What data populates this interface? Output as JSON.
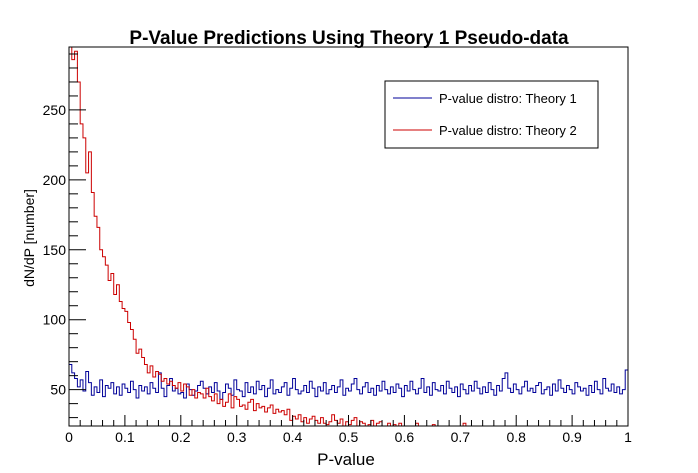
{
  "chart_data": {
    "type": "line",
    "title": "P-Value Predictions Using Theory 1 Pseudo-data",
    "xlabel": "P-value",
    "ylabel": "dN/dP [number]",
    "xlim": [
      0,
      1
    ],
    "ylim": [
      24,
      295
    ],
    "grid": false,
    "legend_position": "top-right",
    "x_ticks": [
      "0",
      "0.1",
      "0.2",
      "0.3",
      "0.4",
      "0.5",
      "0.6",
      "0.7",
      "0.8",
      "0.9",
      "1"
    ],
    "y_ticks": [
      "50",
      "100",
      "150",
      "200",
      "250"
    ],
    "y_tick_values": [
      50,
      100,
      150,
      200,
      250
    ],
    "bin_width": 0.005,
    "series": [
      {
        "name": "P-value distro: Theory 1",
        "color": "#000099",
        "values": [
          68,
          62,
          58,
          52,
          57,
          49,
          63,
          55,
          46,
          52,
          48,
          57,
          45,
          53,
          51,
          55,
          47,
          52,
          46,
          54,
          51,
          48,
          56,
          50,
          44,
          53,
          49,
          52,
          47,
          55,
          51,
          48,
          62,
          51,
          45,
          53,
          58,
          49,
          51,
          47,
          48,
          44,
          54,
          50,
          46,
          49,
          53,
          56,
          51,
          47,
          52,
          48,
          55,
          49,
          43,
          48,
          54,
          51,
          46,
          57,
          50,
          49,
          45,
          55,
          48,
          52,
          47,
          56,
          50,
          53,
          45,
          51,
          57,
          47,
          50,
          48,
          52,
          55,
          46,
          51,
          58,
          50,
          47,
          49,
          53,
          48,
          56,
          51,
          45,
          52,
          49,
          55,
          47,
          50,
          53,
          48,
          52,
          57,
          46,
          51,
          49,
          54,
          58,
          50,
          47,
          52,
          55,
          48,
          51,
          46,
          53,
          49,
          56,
          50,
          47,
          52,
          48,
          54,
          51,
          45,
          53,
          49,
          56,
          50,
          47,
          51,
          58,
          48,
          52,
          46,
          55,
          50,
          49,
          53,
          47,
          56,
          51,
          48,
          52,
          45,
          54,
          50,
          47,
          53,
          49,
          56,
          51,
          47,
          52,
          48,
          55,
          50,
          46,
          53,
          49,
          58,
          62,
          51,
          48,
          54,
          50,
          47,
          52,
          56,
          49,
          51,
          48,
          53,
          55,
          47,
          50,
          52,
          46,
          54,
          49,
          57,
          51,
          48,
          53,
          50,
          47,
          55,
          52,
          49,
          51,
          46,
          53,
          48,
          56,
          50,
          47,
          58,
          51,
          49,
          54,
          48,
          52,
          47,
          50,
          64
        ]
      },
      {
        "name": "P-value distro: Theory 2",
        "color": "#cc0000",
        "values": [
          298,
          286,
          292,
          270,
          240,
          230,
          205,
          220,
          191,
          174,
          166,
          150,
          145,
          139,
          128,
          133,
          118,
          125,
          113,
          108,
          106,
          98,
          93,
          86,
          76,
          79,
          73,
          68,
          62,
          67,
          59,
          63,
          61,
          56,
          58,
          54,
          56,
          53,
          51,
          55,
          49,
          54,
          52,
          46,
          50,
          44,
          48,
          47,
          44,
          51,
          45,
          42,
          47,
          40,
          43,
          38,
          41,
          47,
          37,
          45,
          43,
          38,
          39,
          36,
          41,
          43,
          35,
          40,
          37,
          38,
          34,
          37,
          39,
          33,
          36,
          34,
          35,
          32,
          36,
          28,
          31,
          29,
          32,
          27,
          30,
          26,
          29,
          31,
          28,
          26,
          30,
          26,
          25,
          27,
          32,
          28,
          26,
          29,
          24,
          27,
          25,
          28,
          30,
          24,
          27,
          26,
          23,
          25,
          28,
          22,
          26,
          27,
          23,
          24,
          26,
          21,
          25,
          23,
          26,
          21,
          24,
          22,
          20,
          24,
          26,
          22,
          21,
          23,
          19,
          22,
          25,
          20,
          19,
          24,
          21,
          22,
          18,
          20,
          23,
          19,
          22,
          26,
          20,
          17,
          21,
          24,
          18,
          20,
          22,
          19,
          16,
          20,
          21,
          18,
          17,
          22,
          19,
          16,
          18,
          20,
          17,
          19,
          21,
          16,
          18,
          17,
          20,
          15,
          18,
          19,
          16,
          14,
          19,
          17,
          15,
          18,
          16,
          14,
          17,
          16,
          13,
          15,
          17,
          14,
          16,
          15,
          13,
          16,
          14,
          12,
          15,
          13,
          14,
          12,
          13,
          11,
          14,
          12,
          10,
          13
        ]
      }
    ]
  }
}
